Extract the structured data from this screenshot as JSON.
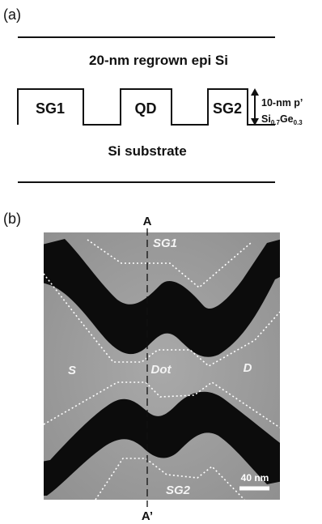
{
  "panel_a": {
    "label": "(a)",
    "top_layer": "20-nm regrown epi Si",
    "gates": [
      "SG1",
      "QD",
      "SG2"
    ],
    "thickness_label": "10-nm p’",
    "alloy": {
      "base": "Si",
      "sub1": "0.7",
      "mid": "Ge",
      "sub2": "0.3"
    },
    "bottom_layer": "Si substrate"
  },
  "panel_b": {
    "label": "(b)",
    "cut_top": "A",
    "cut_bottom": "A’",
    "regions": {
      "sg1": "SG1",
      "source": "S",
      "dot": "Dot",
      "drain": "D",
      "sg2": "SG2"
    },
    "scale_bar": "40 nm"
  },
  "colors": {
    "line": "#111111",
    "afm_background": "#9d9d9d",
    "trench": "#0c0c0c",
    "outline": "#ffffff"
  }
}
